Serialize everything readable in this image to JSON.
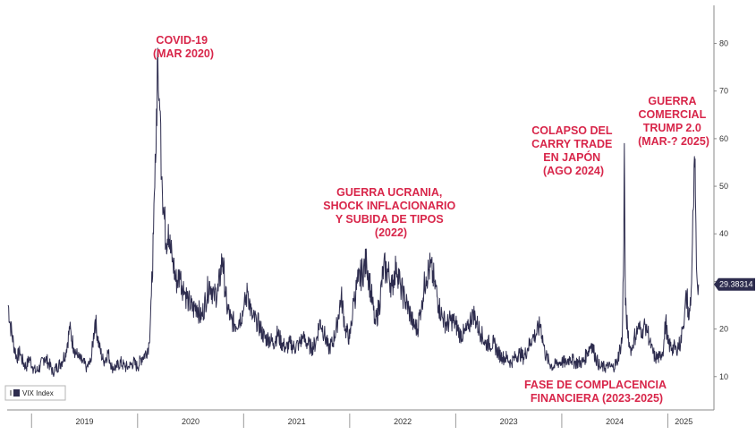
{
  "chart_data": {
    "type": "line",
    "title": "",
    "xlabel": "",
    "ylabel": "",
    "ylim": [
      3,
      88
    ],
    "xlim": [
      2018.77,
      2025.3
    ],
    "y_ticks": [
      10,
      20,
      30,
      40,
      50,
      60,
      70,
      80
    ],
    "x_year_labels": [
      {
        "label": "2019",
        "year": 2019
      },
      {
        "label": "2020",
        "year": 2020
      },
      {
        "label": "2021",
        "year": 2021
      },
      {
        "label": "2022",
        "year": 2022
      },
      {
        "label": "2023",
        "year": 2023
      },
      {
        "label": "2024",
        "year": 2024
      },
      {
        "label": "2025",
        "year": 2025
      }
    ],
    "legend": {
      "position": "bottom-left",
      "label": "VIX Index"
    },
    "grid": false,
    "line_color": "#2d2c4e",
    "annotation_color": "#d8264a",
    "last_value": "29.38314",
    "series": [
      {
        "name": "VIX Index",
        "points": [
          [
            2018.78,
            25
          ],
          [
            2018.8,
            21
          ],
          [
            2018.83,
            17
          ],
          [
            2018.86,
            14
          ],
          [
            2018.89,
            15
          ],
          [
            2018.92,
            13
          ],
          [
            2018.95,
            12
          ],
          [
            2018.98,
            14
          ],
          [
            2019.01,
            12
          ],
          [
            2019.04,
            11
          ],
          [
            2019.08,
            12
          ],
          [
            2019.12,
            14
          ],
          [
            2019.16,
            13
          ],
          [
            2019.2,
            11
          ],
          [
            2019.24,
            12
          ],
          [
            2019.28,
            13
          ],
          [
            2019.32,
            15
          ],
          [
            2019.36,
            20
          ],
          [
            2019.4,
            16
          ],
          [
            2019.44,
            14
          ],
          [
            2019.48,
            13
          ],
          [
            2019.52,
            12
          ],
          [
            2019.56,
            13
          ],
          [
            2019.6,
            22
          ],
          [
            2019.64,
            16
          ],
          [
            2019.68,
            13
          ],
          [
            2019.72,
            15
          ],
          [
            2019.76,
            12
          ],
          [
            2019.8,
            12
          ],
          [
            2019.84,
            13
          ],
          [
            2019.88,
            12
          ],
          [
            2019.92,
            12
          ],
          [
            2019.96,
            13
          ],
          [
            2020.0,
            12
          ],
          [
            2020.04,
            14
          ],
          [
            2020.08,
            15
          ],
          [
            2020.11,
            17
          ],
          [
            2020.13,
            27
          ],
          [
            2020.15,
            40
          ],
          [
            2020.17,
            55
          ],
          [
            2020.19,
            79
          ],
          [
            2020.2,
            68
          ],
          [
            2020.21,
            66
          ],
          [
            2020.23,
            52
          ],
          [
            2020.25,
            44
          ],
          [
            2020.27,
            38
          ],
          [
            2020.29,
            42
          ],
          [
            2020.31,
            36
          ],
          [
            2020.33,
            35
          ],
          [
            2020.36,
            30
          ],
          [
            2020.4,
            31
          ],
          [
            2020.44,
            28
          ],
          [
            2020.48,
            26
          ],
          [
            2020.52,
            24
          ],
          [
            2020.56,
            25
          ],
          [
            2020.6,
            22
          ],
          [
            2020.64,
            26
          ],
          [
            2020.68,
            30
          ],
          [
            2020.72,
            27
          ],
          [
            2020.76,
            28
          ],
          [
            2020.8,
            35
          ],
          [
            2020.84,
            25
          ],
          [
            2020.88,
            22
          ],
          [
            2020.92,
            21
          ],
          [
            2020.96,
            22
          ],
          [
            2021.0,
            24
          ],
          [
            2021.04,
            28
          ],
          [
            2021.08,
            22
          ],
          [
            2021.12,
            22
          ],
          [
            2021.16,
            20
          ],
          [
            2021.2,
            18
          ],
          [
            2021.24,
            18
          ],
          [
            2021.28,
            17
          ],
          [
            2021.32,
            19
          ],
          [
            2021.36,
            17
          ],
          [
            2021.4,
            16
          ],
          [
            2021.44,
            17
          ],
          [
            2021.48,
            16
          ],
          [
            2021.52,
            17
          ],
          [
            2021.56,
            18
          ],
          [
            2021.6,
            17
          ],
          [
            2021.64,
            16
          ],
          [
            2021.68,
            17
          ],
          [
            2021.72,
            22
          ],
          [
            2021.76,
            19
          ],
          [
            2021.8,
            16
          ],
          [
            2021.84,
            17
          ],
          [
            2021.88,
            21
          ],
          [
            2021.92,
            27
          ],
          [
            2021.96,
            20
          ],
          [
            2022.0,
            18
          ],
          [
            2022.04,
            26
          ],
          [
            2022.08,
            30
          ],
          [
            2022.12,
            32
          ],
          [
            2022.16,
            34
          ],
          [
            2022.2,
            28
          ],
          [
            2022.24,
            21
          ],
          [
            2022.28,
            25
          ],
          [
            2022.32,
            33
          ],
          [
            2022.36,
            32
          ],
          [
            2022.4,
            29
          ],
          [
            2022.44,
            34
          ],
          [
            2022.48,
            29
          ],
          [
            2022.52,
            26
          ],
          [
            2022.56,
            24
          ],
          [
            2022.6,
            21
          ],
          [
            2022.64,
            20
          ],
          [
            2022.68,
            26
          ],
          [
            2022.72,
            31
          ],
          [
            2022.76,
            33
          ],
          [
            2022.8,
            30
          ],
          [
            2022.84,
            25
          ],
          [
            2022.88,
            22
          ],
          [
            2022.92,
            21
          ],
          [
            2022.96,
            22
          ],
          [
            2023.0,
            21
          ],
          [
            2023.04,
            19
          ],
          [
            2023.08,
            19
          ],
          [
            2023.12,
            20
          ],
          [
            2023.16,
            24
          ],
          [
            2023.2,
            21
          ],
          [
            2023.24,
            19
          ],
          [
            2023.28,
            17
          ],
          [
            2023.32,
            17
          ],
          [
            2023.36,
            17
          ],
          [
            2023.4,
            15
          ],
          [
            2023.44,
            14
          ],
          [
            2023.48,
            14
          ],
          [
            2023.52,
            13
          ],
          [
            2023.56,
            14
          ],
          [
            2023.6,
            15
          ],
          [
            2023.64,
            14
          ],
          [
            2023.68,
            16
          ],
          [
            2023.72,
            18
          ],
          [
            2023.76,
            19
          ],
          [
            2023.8,
            21
          ],
          [
            2023.84,
            15
          ],
          [
            2023.88,
            13
          ],
          [
            2023.92,
            12
          ],
          [
            2023.96,
            13
          ],
          [
            2024.0,
            13
          ],
          [
            2024.04,
            13
          ],
          [
            2024.08,
            14
          ],
          [
            2024.12,
            13
          ],
          [
            2024.16,
            13
          ],
          [
            2024.2,
            13
          ],
          [
            2024.24,
            15
          ],
          [
            2024.28,
            17
          ],
          [
            2024.32,
            14
          ],
          [
            2024.36,
            12
          ],
          [
            2024.4,
            12
          ],
          [
            2024.44,
            12
          ],
          [
            2024.48,
            12
          ],
          [
            2024.52,
            13
          ],
          [
            2024.55,
            16
          ],
          [
            2024.57,
            18
          ],
          [
            2024.585,
            38
          ],
          [
            2024.59,
            59
          ],
          [
            2024.6,
            25
          ],
          [
            2024.62,
            20
          ],
          [
            2024.64,
            16
          ],
          [
            2024.66,
            16
          ],
          [
            2024.68,
            18
          ],
          [
            2024.72,
            20
          ],
          [
            2024.76,
            20
          ],
          [
            2024.8,
            21
          ],
          [
            2024.84,
            16
          ],
          [
            2024.88,
            14
          ],
          [
            2024.92,
            14
          ],
          [
            2024.96,
            16
          ],
          [
            2024.98,
            22
          ],
          [
            2025.0,
            17
          ],
          [
            2025.04,
            16
          ],
          [
            2025.08,
            16
          ],
          [
            2025.12,
            17
          ],
          [
            2025.14,
            20
          ],
          [
            2025.16,
            24
          ],
          [
            2025.18,
            27
          ],
          [
            2025.2,
            22
          ],
          [
            2025.22,
            28
          ],
          [
            2025.24,
            45
          ],
          [
            2025.255,
            54
          ],
          [
            2025.26,
            48
          ],
          [
            2025.27,
            33
          ],
          [
            2025.28,
            29
          ],
          [
            2025.29,
            29.38
          ]
        ]
      }
    ],
    "annotations": [
      {
        "lines": [
          "COVID-19",
          "(MAR 2020)"
        ]
      },
      {
        "lines": [
          "GUERRA UCRANIA,",
          "SHOCK INFLACIONARIO",
          "Y SUBIDA DE TIPOS",
          "(2022)"
        ]
      },
      {
        "lines": [
          "COLAPSO DEL",
          "CARRY TRADE",
          "EN JAPÓN",
          "(AGO 2024)"
        ]
      },
      {
        "lines": [
          "GUERRA",
          "COMERCIAL",
          "TRUMP 2.0",
          "(MAR-? 2025)"
        ]
      },
      {
        "lines": [
          "FASE DE COMPLACENCIA",
          "FINANCIERA (2023-2025)"
        ]
      }
    ]
  }
}
